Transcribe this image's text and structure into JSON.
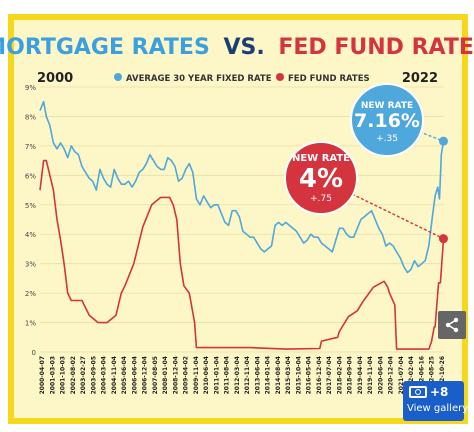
{
  "title": {
    "part1": "MORTGAGE RATES",
    "part2": "VS.",
    "part3": "FED FUND RATES"
  },
  "legend": {
    "start_year": "2000",
    "end_year": "2022",
    "mortgage_label": "AVERAGE 30 YEAR FIXED RATE",
    "fed_label": "FED FUND RATES"
  },
  "callouts": {
    "mortgage": {
      "head": "NEW RATE",
      "value": "7.16%",
      "change": "+.35"
    },
    "fed": {
      "head": "NEW RATE",
      "value": "4%",
      "change": "+.75"
    }
  },
  "gallery": {
    "count": "+8",
    "label": "View gallery"
  },
  "colors": {
    "background": "#fdf7c8",
    "frame": "#f5d81c",
    "mortgage": "#4ea8dc",
    "fed": "#d3343e",
    "title_blue": "#3b9fe0",
    "title_red": "#d3343e",
    "title_dark": "#1c3f73"
  },
  "chart_data": {
    "type": "line",
    "title": "MORTGAGE RATES VS. FED FUND RATES",
    "xlim": [
      2000.25,
      2022.85
    ],
    "ylim": [
      0,
      9
    ],
    "yticks": [
      "0",
      "1%",
      "2%",
      "3%",
      "4%",
      "5%",
      "6%",
      "7%",
      "8%",
      "9%"
    ],
    "xticks": [
      "2000-04-07",
      "2001-03-03",
      "2001-10-03",
      "2002-08-02",
      "2003-02-27",
      "2003-09-05",
      "2004-03-04",
      "2004-11-04",
      "2005-06-04",
      "2006-06-04",
      "2006-12-04",
      "2007-08-05",
      "2008-01-04",
      "2008-12-04",
      "2009-04-02",
      "2009-11-04",
      "2010-06-04",
      "2011-01-04",
      "2011-08-04",
      "2012-03-04",
      "2012-11-04",
      "2013-06-04",
      "2014-01-04",
      "2014-08-04",
      "2015-03-04",
      "2015-10-04",
      "2016-05-04",
      "2016-12-04",
      "2017-07-04",
      "2018-02-04",
      "2018-09-04",
      "2019-04-04",
      "2019-11-04",
      "2020-06-04",
      "2020-12-04",
      "2021-07-04",
      "2022-02-04",
      "2022-06-16",
      "2022-08-25",
      "2022-10-26"
    ],
    "series": [
      {
        "name": "AVERAGE 30 YEAR FIXED RATE",
        "color": "#4ea8dc",
        "x": [
          2000.25,
          2000.45,
          2000.6,
          2000.8,
          2001.0,
          2001.2,
          2001.4,
          2001.6,
          2001.8,
          2002.0,
          2002.2,
          2002.4,
          2002.6,
          2002.8,
          2003.0,
          2003.2,
          2003.4,
          2003.6,
          2003.8,
          2004.0,
          2004.2,
          2004.4,
          2004.6,
          2004.8,
          2005.0,
          2005.2,
          2005.4,
          2005.6,
          2005.8,
          2006.0,
          2006.2,
          2006.4,
          2006.6,
          2006.8,
          2007.0,
          2007.2,
          2007.4,
          2007.6,
          2007.8,
          2008.0,
          2008.2,
          2008.4,
          2008.6,
          2008.8,
          2009.0,
          2009.2,
          2009.4,
          2009.6,
          2009.8,
          2010.0,
          2010.2,
          2010.4,
          2010.6,
          2010.8,
          2011.0,
          2011.2,
          2011.4,
          2011.6,
          2011.8,
          2012.0,
          2012.2,
          2012.4,
          2012.6,
          2012.8,
          2013.0,
          2013.2,
          2013.4,
          2013.6,
          2013.8,
          2014.0,
          2014.2,
          2014.4,
          2014.6,
          2014.8,
          2015.0,
          2015.2,
          2015.4,
          2015.6,
          2015.8,
          2016.0,
          2016.2,
          2016.4,
          2016.6,
          2016.8,
          2017.0,
          2017.2,
          2017.4,
          2017.6,
          2017.8,
          2018.0,
          2018.2,
          2018.4,
          2018.6,
          2018.8,
          2019.0,
          2019.2,
          2019.4,
          2019.6,
          2019.8,
          2020.0,
          2020.2,
          2020.4,
          2020.6,
          2020.8,
          2021.0,
          2021.2,
          2021.4,
          2021.6,
          2021.8,
          2022.0,
          2022.2,
          2022.35,
          2022.5,
          2022.6,
          2022.7,
          2022.82
        ],
        "y": [
          8.2,
          8.5,
          8.0,
          7.7,
          7.1,
          6.9,
          7.1,
          6.9,
          6.6,
          7.0,
          6.8,
          6.7,
          6.3,
          6.1,
          5.9,
          5.8,
          5.5,
          6.2,
          5.9,
          5.7,
          5.6,
          6.2,
          5.9,
          5.7,
          5.7,
          5.8,
          5.6,
          5.8,
          6.1,
          6.2,
          6.4,
          6.7,
          6.5,
          6.3,
          6.2,
          6.2,
          6.6,
          6.5,
          6.3,
          5.8,
          5.9,
          6.2,
          6.4,
          6.1,
          5.2,
          5.0,
          5.3,
          5.1,
          4.9,
          5.0,
          5.0,
          4.7,
          4.4,
          4.3,
          4.8,
          4.8,
          4.6,
          4.1,
          4.0,
          3.9,
          3.9,
          3.7,
          3.5,
          3.4,
          3.5,
          3.6,
          4.3,
          4.4,
          4.3,
          4.4,
          4.3,
          4.2,
          4.1,
          3.9,
          3.7,
          3.8,
          4.0,
          3.9,
          3.9,
          3.7,
          3.6,
          3.5,
          3.4,
          3.8,
          4.2,
          4.2,
          4.0,
          3.9,
          3.9,
          4.2,
          4.5,
          4.6,
          4.7,
          4.8,
          4.5,
          4.2,
          4.0,
          3.6,
          3.7,
          3.6,
          3.4,
          3.2,
          2.9,
          2.7,
          2.8,
          3.1,
          2.9,
          3.0,
          3.1,
          3.6,
          4.6,
          5.3,
          5.6,
          5.2,
          6.7,
          7.16
        ]
      },
      {
        "name": "FED FUND RATES",
        "color": "#d3343e",
        "x": [
          2000.25,
          2000.45,
          2000.6,
          2001.0,
          2001.2,
          2001.4,
          2001.6,
          2001.8,
          2002.0,
          2002.6,
          2003.0,
          2003.5,
          2004.0,
          2004.5,
          2004.8,
          2005.0,
          2005.5,
          2006.0,
          2006.5,
          2007.0,
          2007.5,
          2007.7,
          2007.9,
          2008.1,
          2008.3,
          2008.6,
          2008.9,
          2009.0,
          2010.0,
          2012.0,
          2014.0,
          2015.9,
          2016.0,
          2016.9,
          2017.0,
          2017.2,
          2017.5,
          2018.0,
          2018.3,
          2018.6,
          2018.9,
          2019.5,
          2019.7,
          2019.8,
          2020.1,
          2020.2,
          2021.0,
          2022.0,
          2022.15,
          2022.3,
          2022.35,
          2022.45,
          2022.55,
          2022.65,
          2022.82
        ],
        "y": [
          5.5,
          6.5,
          6.5,
          5.5,
          4.5,
          3.8,
          3.0,
          2.0,
          1.75,
          1.75,
          1.25,
          1.0,
          1.0,
          1.25,
          2.0,
          2.25,
          3.0,
          4.25,
          5.0,
          5.25,
          5.25,
          5.0,
          4.5,
          3.0,
          2.25,
          2.0,
          1.0,
          0.15,
          0.15,
          0.15,
          0.1,
          0.12,
          0.37,
          0.5,
          0.7,
          0.9,
          1.2,
          1.4,
          1.7,
          1.95,
          2.2,
          2.4,
          2.2,
          2.0,
          1.6,
          0.1,
          0.1,
          0.1,
          0.35,
          0.85,
          0.85,
          1.6,
          2.35,
          2.35,
          3.85
        ]
      }
    ]
  }
}
